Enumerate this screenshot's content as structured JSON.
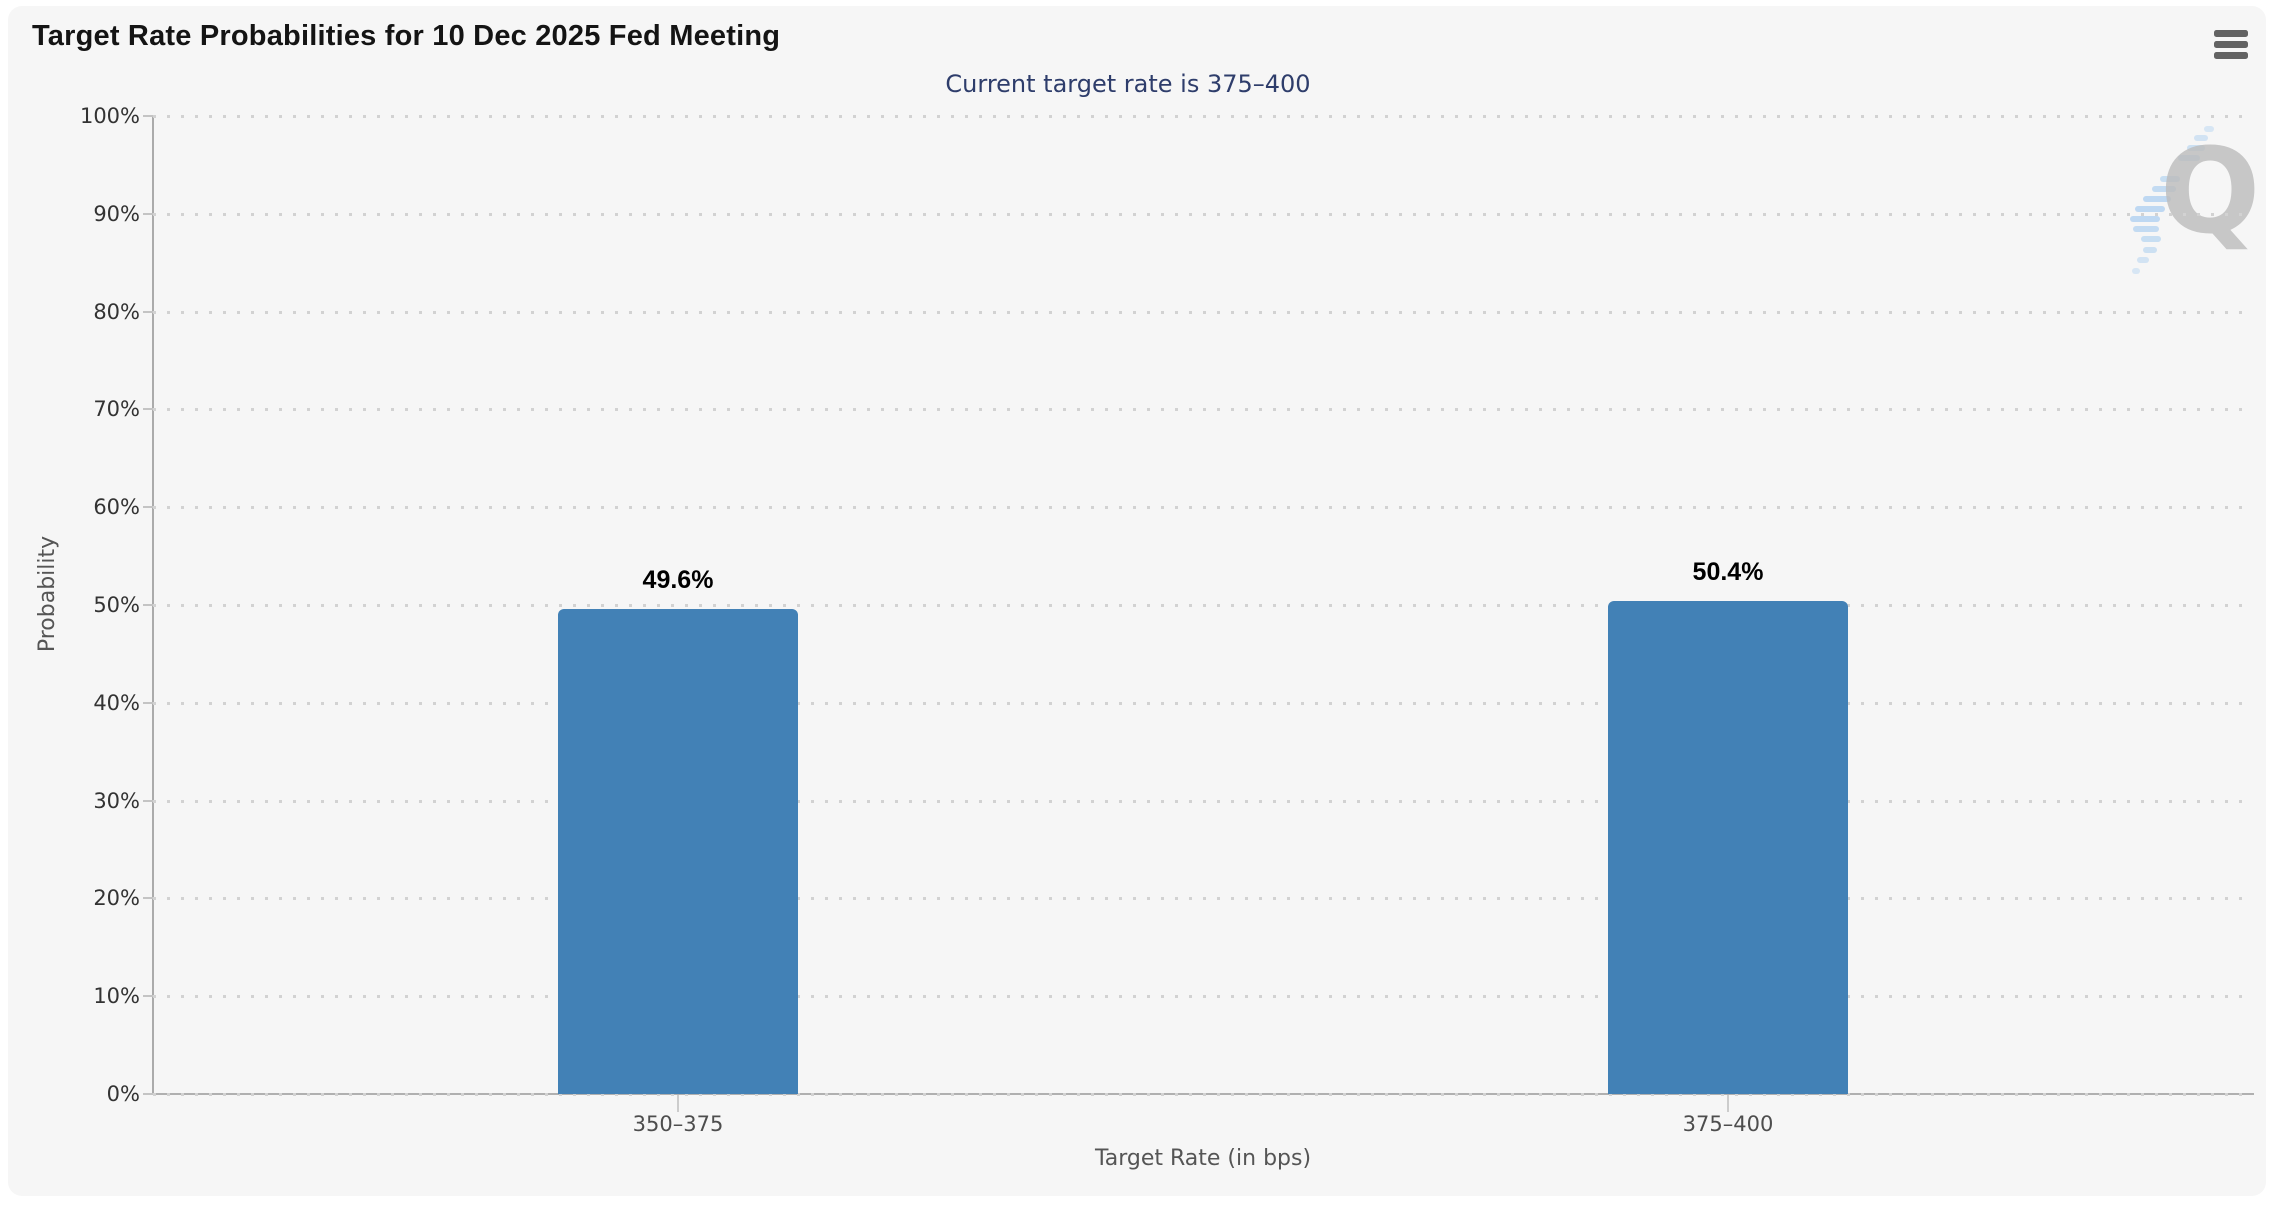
{
  "chart_data": {
    "type": "bar",
    "title": "Target Rate Probabilities for 10 Dec 2025 Fed Meeting",
    "subtitle": "Current target rate is 375–400",
    "categories": [
      "350–375",
      "375–400"
    ],
    "values": [
      49.6,
      50.4
    ],
    "value_labels": [
      "49.6%",
      "50.4%"
    ],
    "xlabel": "Target Rate (in bps)",
    "ylabel": "Probability",
    "ylim": [
      0,
      100
    ],
    "y_tick_labels": [
      "0%",
      "10%",
      "20%",
      "30%",
      "40%",
      "50%",
      "60%",
      "70%",
      "80%",
      "90%",
      "100%"
    ],
    "grid": "horizontal-dotted",
    "legend": "none",
    "bar_color": "#4281b6"
  },
  "toolbar": {
    "menu_icon": "hamburger-menu-icon"
  },
  "watermark": {
    "letter": "Q"
  },
  "colors": {
    "card_background": "#f6f6f6",
    "bar": "#4281b6",
    "subtitle_text": "#2e3d6b",
    "grid_dot": "#d2d2d2",
    "axis_line": "#b0b0b0",
    "watermark_gray": "#bdbdbd",
    "watermark_blue": "#8fc0ee"
  }
}
